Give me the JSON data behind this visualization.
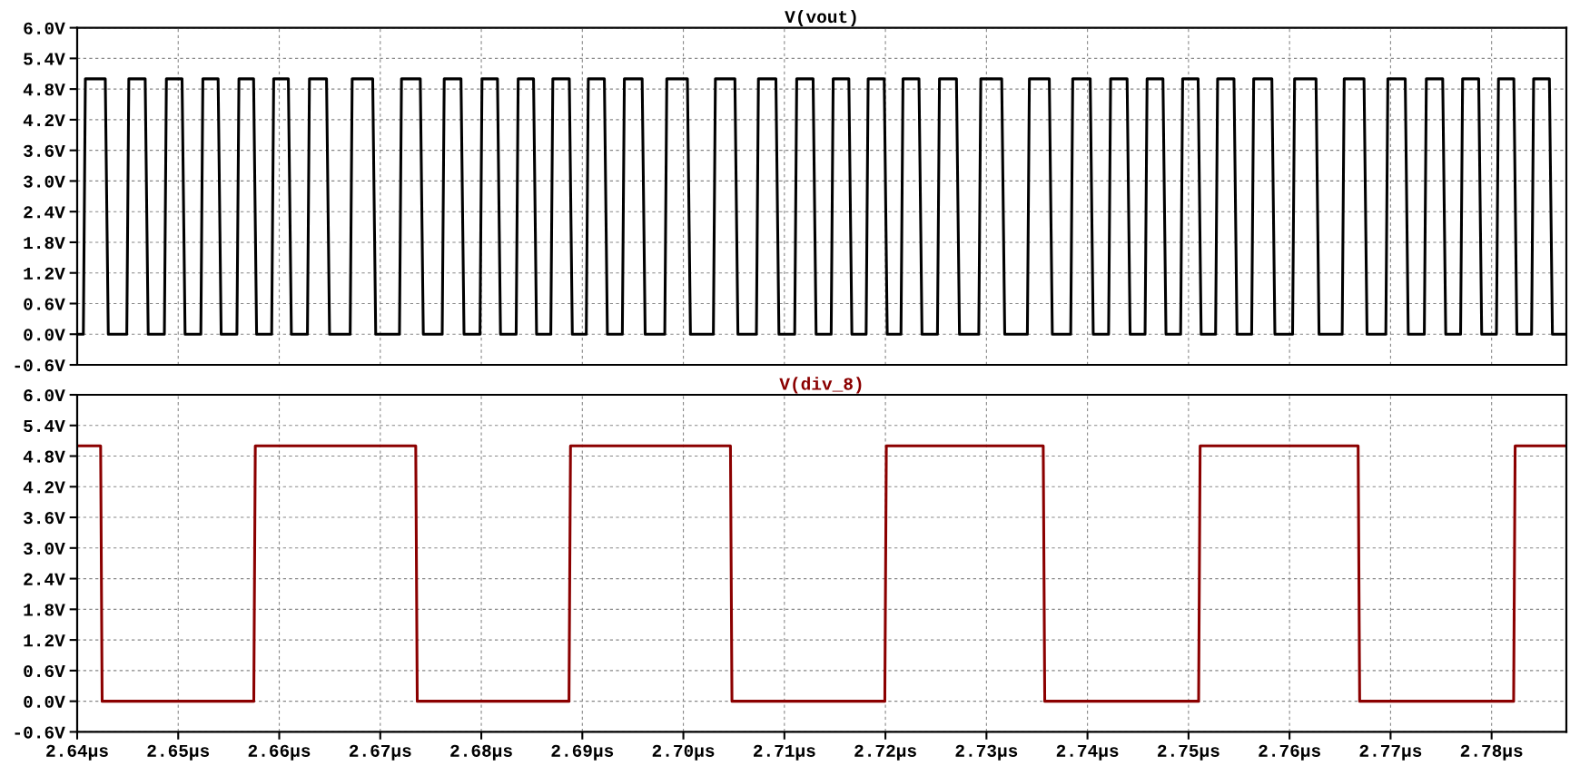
{
  "chart_data": [
    {
      "type": "line",
      "title": "V(vout)",
      "tick_labels": "y",
      "grid": true,
      "line_style": "solid",
      "xlim": [
        2.64,
        2.7874
      ],
      "ylim": [
        -0.6,
        6.0
      ],
      "xticks": [
        {
          "value": 2.64,
          "label": null
        },
        {
          "value": 2.65,
          "label": null
        },
        {
          "value": 2.66,
          "label": null
        },
        {
          "value": 2.67,
          "label": null
        },
        {
          "value": 2.68,
          "label": null
        },
        {
          "value": 2.69,
          "label": null
        },
        {
          "value": 2.7,
          "label": null
        },
        {
          "value": 2.71,
          "label": null
        },
        {
          "value": 2.72,
          "label": null
        },
        {
          "value": 2.73,
          "label": null
        },
        {
          "value": 2.74,
          "label": null
        },
        {
          "value": 2.75,
          "label": null
        },
        {
          "value": 2.76,
          "label": null
        },
        {
          "value": 2.77,
          "label": null
        },
        {
          "value": 2.78,
          "label": null
        }
      ],
      "yticks": [
        {
          "value": 6.0,
          "label": "6.0V"
        },
        {
          "value": 5.4,
          "label": "5.4V"
        },
        {
          "value": 4.8,
          "label": "4.8V"
        },
        {
          "value": 4.2,
          "label": "4.2V"
        },
        {
          "value": 3.6,
          "label": "3.6V"
        },
        {
          "value": 3.0,
          "label": "3.0V"
        },
        {
          "value": 2.4,
          "label": "2.4V"
        },
        {
          "value": 1.8,
          "label": "1.8V"
        },
        {
          "value": 1.2,
          "label": "1.2V"
        },
        {
          "value": 0.6,
          "label": "0.6V"
        },
        {
          "value": 0.0,
          "label": "0.0V"
        },
        {
          "value": -0.6,
          "label": "-0.6V"
        }
      ],
      "series": [
        {
          "color": "#000000",
          "x": [
            2.64,
            2.64061,
            2.64081,
            2.64278,
            2.64308,
            2.64491,
            2.64511,
            2.64673,
            2.64703,
            2.64863,
            2.64883,
            2.65038,
            2.65068,
            2.65224,
            2.65244,
            2.65395,
            2.65425,
            2.65581,
            2.65601,
            2.65746,
            2.65776,
            2.65925,
            2.65945,
            2.6609,
            2.6612,
            2.66279,
            2.66299,
            2.66468,
            2.66498,
            2.66702,
            2.66722,
            2.66925,
            2.66955,
            2.6719,
            2.6721,
            2.67396,
            2.67426,
            2.67613,
            2.67633,
            2.67799,
            2.67829,
            2.67987,
            2.68007,
            2.6816,
            2.6819,
            2.68345,
            2.68365,
            2.68517,
            2.68547,
            2.68688,
            2.68708,
            2.68871,
            2.68901,
            2.69039,
            2.69059,
            2.69218,
            2.69248,
            2.69396,
            2.69416,
            2.69592,
            2.69622,
            2.69816,
            2.69836,
            2.7004,
            2.7007,
            2.70297,
            2.70317,
            2.7051,
            2.7054,
            2.70723,
            2.70743,
            2.70916,
            2.70946,
            2.71102,
            2.71122,
            2.71284,
            2.71314,
            2.71463,
            2.71483,
            2.71638,
            2.71668,
            2.71809,
            2.71829,
            2.71988,
            2.72018,
            2.72154,
            2.72174,
            2.72332,
            2.72362,
            2.72515,
            2.72535,
            2.72703,
            2.72733,
            2.72924,
            2.72944,
            2.73151,
            2.73181,
            2.73405,
            2.73425,
            2.73622,
            2.73652,
            2.73834,
            2.73854,
            2.74027,
            2.74057,
            2.74209,
            2.74229,
            2.74392,
            2.74422,
            2.7457,
            2.7459,
            2.74747,
            2.74777,
            2.74922,
            2.74942,
            2.75095,
            2.75125,
            2.75268,
            2.75288,
            2.7545,
            2.7548,
            2.75625,
            2.75645,
            2.75825,
            2.75855,
            2.7603,
            2.7605,
            2.76262,
            2.76292,
            2.76521,
            2.76541,
            2.76737,
            2.76767,
            2.76953,
            2.76973,
            2.77145,
            2.77175,
            2.77334,
            2.77354,
            2.77516,
            2.77546,
            2.77693,
            2.77713,
            2.77872,
            2.77902,
            2.78048,
            2.78068,
            2.7822,
            2.7825,
            2.78396,
            2.78416,
            2.78572,
            2.78602,
            2.7874
          ],
          "values": [
            0,
            0,
            5,
            5,
            0,
            0,
            5,
            5,
            0,
            0,
            5,
            5,
            0,
            0,
            5,
            5,
            0,
            0,
            5,
            5,
            0,
            0,
            5,
            5,
            0,
            0,
            5,
            5,
            0,
            0,
            5,
            5,
            0,
            0,
            5,
            5,
            0,
            0,
            5,
            5,
            0,
            0,
            5,
            5,
            0,
            0,
            5,
            5,
            0,
            0,
            5,
            5,
            0,
            0,
            5,
            5,
            0,
            0,
            5,
            5,
            0,
            0,
            5,
            5,
            0,
            0,
            5,
            5,
            0,
            0,
            5,
            5,
            0,
            0,
            5,
            5,
            0,
            0,
            5,
            5,
            0,
            0,
            5,
            5,
            0,
            0,
            5,
            5,
            0,
            0,
            5,
            5,
            0,
            0,
            5,
            5,
            0,
            0,
            5,
            5,
            0,
            0,
            5,
            5,
            0,
            0,
            5,
            5,
            0,
            0,
            5,
            5,
            0,
            0,
            5,
            5,
            0,
            0,
            5,
            5,
            0,
            0,
            5,
            5,
            0,
            0,
            5,
            5,
            0,
            0,
            5,
            5,
            0,
            0,
            5,
            5,
            0,
            0,
            5,
            5,
            0,
            0,
            5,
            5,
            0,
            0,
            5,
            5,
            0,
            0,
            5,
            5,
            0,
            0
          ]
        }
      ]
    },
    {
      "type": "line",
      "title": "V(div_8)",
      "grid": true,
      "line_style": "solid",
      "xlim": [
        2.64,
        2.7874
      ],
      "ylim": [
        -0.6,
        6.0
      ],
      "xticks": [
        {
          "value": 2.64,
          "label": "2.64µs"
        },
        {
          "value": 2.65,
          "label": "2.65µs"
        },
        {
          "value": 2.66,
          "label": "2.66µs"
        },
        {
          "value": 2.67,
          "label": "2.67µs"
        },
        {
          "value": 2.68,
          "label": "2.68µs"
        },
        {
          "value": 2.69,
          "label": "2.69µs"
        },
        {
          "value": 2.7,
          "label": "2.70µs"
        },
        {
          "value": 2.71,
          "label": "2.71µs"
        },
        {
          "value": 2.72,
          "label": "2.72µs"
        },
        {
          "value": 2.73,
          "label": "2.73µs"
        },
        {
          "value": 2.74,
          "label": "2.74µs"
        },
        {
          "value": 2.75,
          "label": "2.75µs"
        },
        {
          "value": 2.76,
          "label": "2.76µs"
        },
        {
          "value": 2.77,
          "label": "2.77µs"
        },
        {
          "value": 2.78,
          "label": "2.78µs"
        }
      ],
      "yticks": [
        {
          "value": 6.0,
          "label": "6.0V"
        },
        {
          "value": 5.4,
          "label": "5.4V"
        },
        {
          "value": 4.8,
          "label": "4.8V"
        },
        {
          "value": 4.2,
          "label": "4.2V"
        },
        {
          "value": 3.6,
          "label": "3.6V"
        },
        {
          "value": 3.0,
          "label": "3.0V"
        },
        {
          "value": 2.4,
          "label": "2.4V"
        },
        {
          "value": 1.8,
          "label": "1.8V"
        },
        {
          "value": 1.2,
          "label": "1.2V"
        },
        {
          "value": 0.6,
          "label": "0.6V"
        },
        {
          "value": 0.0,
          "label": "0.0V"
        },
        {
          "value": -0.6,
          "label": "-0.6V"
        }
      ],
      "series": [
        {
          "color": "#8b0000",
          "x": [
            2.64,
            2.64232,
            2.64247,
            2.65748,
            2.65763,
            2.67351,
            2.67366,
            2.68868,
            2.68883,
            2.70466,
            2.70481,
            2.71994,
            2.72009,
            2.73562,
            2.73577,
            2.751,
            2.75115,
            2.76679,
            2.76694,
            2.78218,
            2.78233,
            2.7874
          ],
          "values": [
            5,
            5,
            0,
            0,
            5,
            5,
            0,
            0,
            5,
            5,
            0,
            0,
            5,
            5,
            0,
            0,
            5,
            5,
            0,
            0,
            5,
            5
          ]
        }
      ]
    }
  ]
}
